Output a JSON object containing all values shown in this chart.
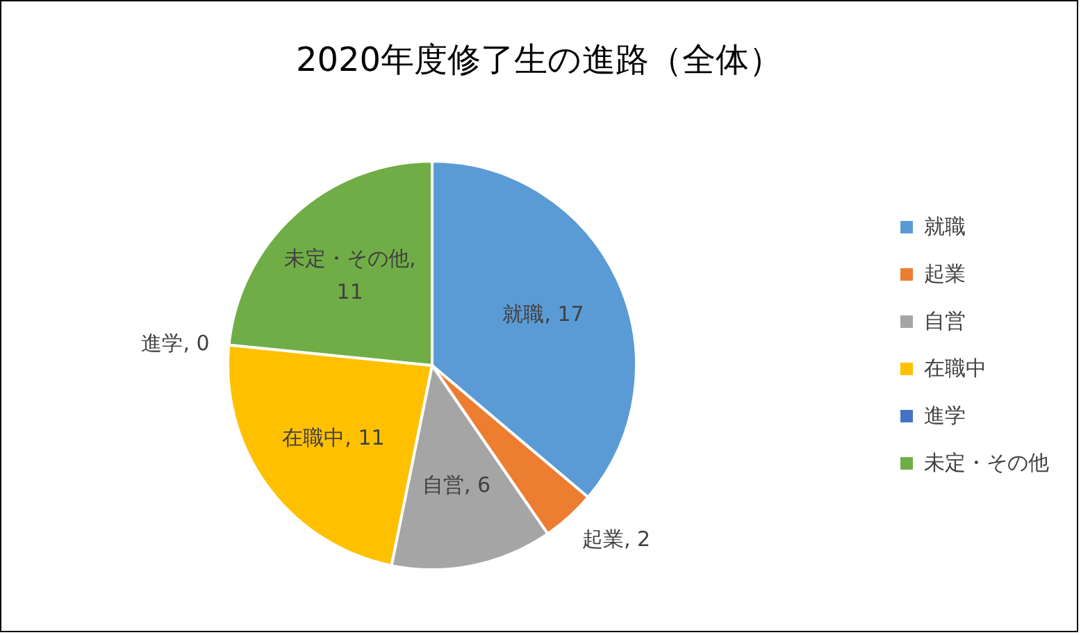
{
  "chart_data": {
    "type": "pie",
    "title": "2020年度修了生の進路（全体）",
    "categories": [
      "就職",
      "起業",
      "自営",
      "在職中",
      "進学",
      "未定・その他"
    ],
    "values": [
      17,
      2,
      6,
      11,
      0,
      11
    ],
    "value_labels": [
      "就職, 17",
      "起業, 2",
      "自営, 6",
      "在職中, 11",
      "進学, 0",
      "未定・その他, 11"
    ],
    "colors": [
      "#5b9bd5",
      "#ed7d31",
      "#a5a5a5",
      "#ffc000",
      "#4472c4",
      "#70ad47"
    ],
    "legend": "right"
  }
}
